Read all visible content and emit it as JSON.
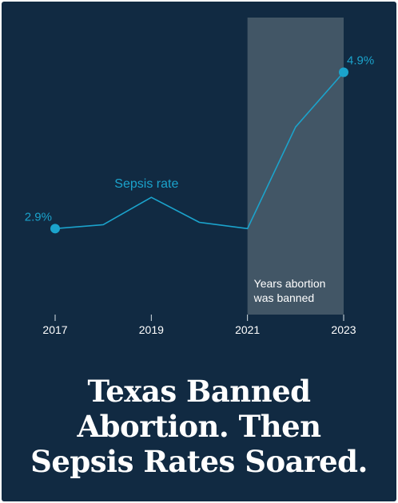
{
  "colors": {
    "background": "#112a42",
    "line": "#1ba3cc",
    "shade": "#425666",
    "axis_text": "#ffffff",
    "headline": "#ffffff"
  },
  "chart_data": {
    "type": "line",
    "title": "",
    "xlabel": "",
    "ylabel": "",
    "x": [
      2017,
      2018,
      2019,
      2020,
      2021,
      2022,
      2023
    ],
    "x_ticks": [
      "2017",
      "2019",
      "2021",
      "2023"
    ],
    "series": [
      {
        "name": "Sepsis rate",
        "values": [
          2.9,
          2.95,
          3.3,
          2.98,
          2.9,
          4.2,
          4.9
        ]
      }
    ],
    "ylim": [
      1.8,
      5.6
    ],
    "grid": false,
    "legend": "none",
    "data_labels": [
      {
        "x": 2017,
        "text": "2.9%"
      },
      {
        "x": 2023,
        "text": "4.9%"
      }
    ],
    "shaded_region": {
      "x_start": 2021,
      "x_end": 2023,
      "label_lines": [
        "Years abortion",
        "was banned"
      ]
    }
  },
  "headline": {
    "lines": [
      "Texas Banned",
      "Abortion. Then",
      "Sepsis Rates Soared."
    ]
  }
}
